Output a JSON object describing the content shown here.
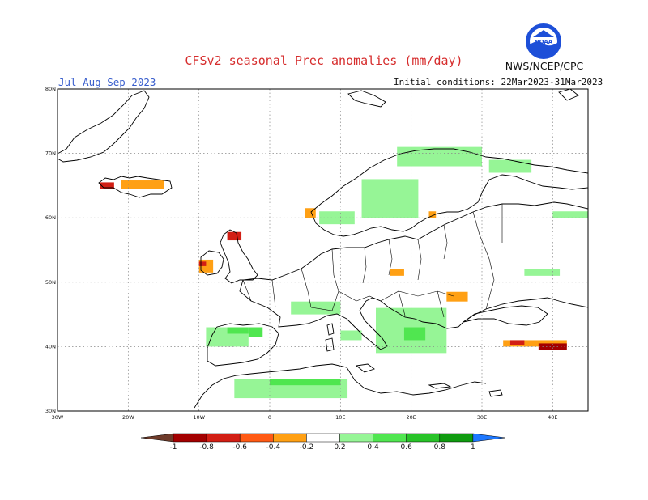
{
  "header": {
    "title": "CFSv2 seasonal Prec anomalies (mm/day)",
    "season": "Jul-Aug-Sep 2023",
    "initial_conditions": "Initial conditions: 22Mar2023-31Mar2023",
    "agency": "NWS/NCEP/CPC",
    "logo_text": "NOAA"
  },
  "map": {
    "lon_range": [
      -30,
      45
    ],
    "lat_range": [
      30,
      80
    ],
    "lat_labels": [
      "80N",
      "70N",
      "60N",
      "50N",
      "40N",
      "30N"
    ],
    "lon_labels": [
      "30W",
      "20W",
      "10W",
      "0",
      "10E",
      "20E",
      "30E",
      "40E"
    ],
    "gridlines": "dotted"
  },
  "colorbar": {
    "ticks": [
      "-1",
      "-0.8",
      "-0.6",
      "-0.4",
      "-0.2",
      "0.2",
      "0.4",
      "0.6",
      "0.8",
      "1"
    ],
    "colors": {
      "lt_neg1": "#6e3b2a",
      "neg1_neg08": "#a30000",
      "neg08_neg06": "#d21e14",
      "neg06_neg04": "#ff5a14",
      "neg04_neg02": "#ffa014",
      "neutral": "#ffffff",
      "p02_p04": "#96f596",
      "p04_p06": "#50e650",
      "p06_p08": "#28c328",
      "p08_p1": "#0f9b0f",
      "gt1": "#1e78ff"
    }
  },
  "anomaly_regions": [
    {
      "name": "Iceland",
      "level": "-0.4",
      "lon": [
        -21,
        -15
      ],
      "lat": [
        64.5,
        65.8
      ]
    },
    {
      "name": "Iceland west",
      "level": "-0.6",
      "lon": [
        -24,
        -22
      ],
      "lat": [
        64.5,
        65.5
      ]
    },
    {
      "name": "Ireland",
      "level": "-0.4",
      "lon": [
        -10,
        -8
      ],
      "lat": [
        51.5,
        53.5
      ]
    },
    {
      "name": "Ireland west",
      "level": "-0.6",
      "lon": [
        -10,
        -9
      ],
      "lat": [
        52.5,
        53.2
      ]
    },
    {
      "name": "Scotland",
      "level": "-0.6",
      "lon": [
        -6,
        -4
      ],
      "lat": [
        56.5,
        57.8
      ]
    },
    {
      "name": "Norway coast",
      "level": "-0.4",
      "lon": [
        5,
        6.5
      ],
      "lat": [
        60,
        61.5
      ]
    },
    {
      "name": "Finland spot",
      "level": "-0.4",
      "lon": [
        22.5,
        23.5
      ],
      "lat": [
        60,
        61
      ]
    },
    {
      "name": "Poland",
      "level": "-0.4",
      "lon": [
        17,
        19
      ],
      "lat": [
        51,
        52
      ]
    },
    {
      "name": "Romania",
      "level": "-0.4",
      "lon": [
        25,
        28
      ],
      "lat": [
        47,
        48.5
      ]
    },
    {
      "name": "Turkey east",
      "level": "-0.4",
      "lon": [
        33,
        42
      ],
      "lat": [
        40,
        41
      ]
    },
    {
      "name": "Georgia",
      "level": "-0.6",
      "lon": [
        34,
        36
      ],
      "lat": [
        40.2,
        41
      ]
    },
    {
      "name": "Caucasus",
      "level": "-0.8",
      "lon": [
        38,
        42
      ],
      "lat": [
        39.5,
        40.5
      ]
    },
    {
      "name": "Scandinavia north",
      "level": "0.2",
      "lon": [
        18,
        30
      ],
      "lat": [
        68,
        71
      ]
    },
    {
      "name": "Sweden central",
      "level": "0.2",
      "lon": [
        13,
        21
      ],
      "lat": [
        60,
        66
      ]
    },
    {
      "name": "Norway south",
      "level": "0.2",
      "lon": [
        7,
        12
      ],
      "lat": [
        59,
        61
      ]
    },
    {
      "name": "Russia northwest",
      "level": "0.2",
      "lon": [
        31,
        37
      ],
      "lat": [
        67,
        69
      ]
    },
    {
      "name": "Russia east",
      "level": "0.2",
      "lon": [
        40,
        45
      ],
      "lat": [
        60,
        61
      ]
    },
    {
      "name": "Belarus",
      "level": "0.2",
      "lon": [
        36,
        41
      ],
      "lat": [
        51,
        52
      ]
    },
    {
      "name": "Iberia north",
      "level": "0.2",
      "lon": [
        -9,
        -3
      ],
      "lat": [
        40,
        43
      ]
    },
    {
      "name": "Iberia north core",
      "level": "0.4",
      "lon": [
        -6,
        -3
      ],
      "lat": [
        42,
        43
      ]
    },
    {
      "name": "Pyrenees",
      "level": "0.4",
      "lon": [
        -3,
        -1
      ],
      "lat": [
        41.5,
        43
      ]
    },
    {
      "name": "Alps",
      "level": "0.2",
      "lon": [
        3,
        10
      ],
      "lat": [
        45,
        47
      ]
    },
    {
      "name": "Balkans",
      "level": "0.2",
      "lon": [
        15,
        25
      ],
      "lat": [
        39,
        46
      ]
    },
    {
      "name": "Balkans core",
      "level": "0.4",
      "lon": [
        19,
        22
      ],
      "lat": [
        41,
        43
      ]
    },
    {
      "name": "Italy south",
      "level": "0.2",
      "lon": [
        10,
        13
      ],
      "lat": [
        41,
        42.5
      ]
    },
    {
      "name": "Maghreb",
      "level": "0.2",
      "lon": [
        -5,
        11
      ],
      "lat": [
        32,
        35
      ]
    },
    {
      "name": "Maghreb core",
      "level": "0.4",
      "lon": [
        0,
        10
      ],
      "lat": [
        34,
        35
      ]
    }
  ]
}
